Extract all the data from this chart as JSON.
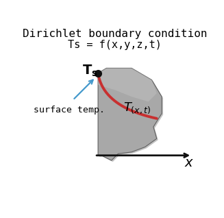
{
  "title_line1": "Dirichlet boundary condition",
  "title_line2": "Ts = f(x,y,z,t)",
  "body_fill": "#a8a8a8",
  "body_edge": "#606060",
  "body_shadow": "#888888",
  "curve_color": "#c83030",
  "dot_color": "#111111",
  "arrow_color": "#4499cc",
  "axis_color": "#111111",
  "bg_color": "#ffffff",
  "title_fontsize": 11.5,
  "sub_fontsize": 11,
  "label_fontsize": 13
}
